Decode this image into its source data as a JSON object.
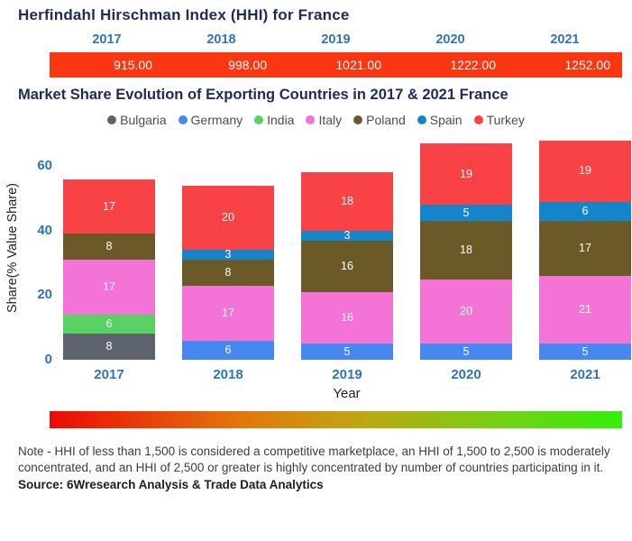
{
  "chart_data": [
    {
      "type": "table",
      "title": "Herfindahl Hirschman Index (HHI) for France",
      "columns": [
        "2017",
        "2018",
        "2019",
        "2020",
        "2021"
      ],
      "rows": [
        [
          "915.00",
          "998.00",
          "1021.00",
          "1222.00",
          "1252.00"
        ]
      ],
      "bar_color": "#fb3711",
      "column_header_color": "#2e75b6",
      "value_text_color": "#ffffff"
    },
    {
      "type": "bar",
      "stacked": true,
      "title": "Market Share Evolution of Exporting Countries in 2017 & 2021 France",
      "categories": [
        "2017",
        "2018",
        "2019",
        "2020",
        "2021"
      ],
      "series": [
        {
          "name": "Bulgaria",
          "color": "#5d6470",
          "values": [
            8,
            0,
            0,
            0,
            0
          ]
        },
        {
          "name": "Germany",
          "color": "#4687f0",
          "values": [
            0,
            6,
            5,
            5,
            5
          ]
        },
        {
          "name": "India",
          "color": "#58d263",
          "values": [
            6,
            0,
            0,
            0,
            0
          ]
        },
        {
          "name": "Italy",
          "color": "#f473d6",
          "values": [
            17,
            17,
            16,
            20,
            21
          ]
        },
        {
          "name": "Poland",
          "color": "#6b5a28",
          "values": [
            8,
            8,
            16,
            18,
            17
          ]
        },
        {
          "name": "Spain",
          "color": "#1585cb",
          "values": [
            0,
            3,
            3,
            5,
            6
          ]
        },
        {
          "name": "Turkey",
          "color": "#f94245",
          "values": [
            17,
            20,
            18,
            19,
            19
          ]
        }
      ],
      "totals": [
        56,
        54,
        58,
        67,
        68
      ],
      "xlabel": "Year",
      "ylabel": "Share(% Value Share)",
      "yticks": [
        0,
        20,
        40,
        60
      ],
      "ylim": [
        0,
        70
      ],
      "grid": false,
      "legend_position": "top",
      "segment_label_style": "white value centered in each segment"
    }
  ],
  "gradient_bar": {
    "colors": [
      "#ee0808",
      "#e2760b",
      "#bfa713",
      "#7fcb11",
      "#35ef0e"
    ],
    "positions": [
      0,
      33,
      55,
      75,
      100
    ]
  },
  "note": "Note - HHI of less than 1,500 is considered a competitive marketplace, an HHI of 1,500 to 2,500 is moderately concentrated, and an HHI of 2,500 or greater is highly concentrated by number of countries participating in it.",
  "source": "Source: 6Wresearch Analysis & Trade Data Analytics"
}
